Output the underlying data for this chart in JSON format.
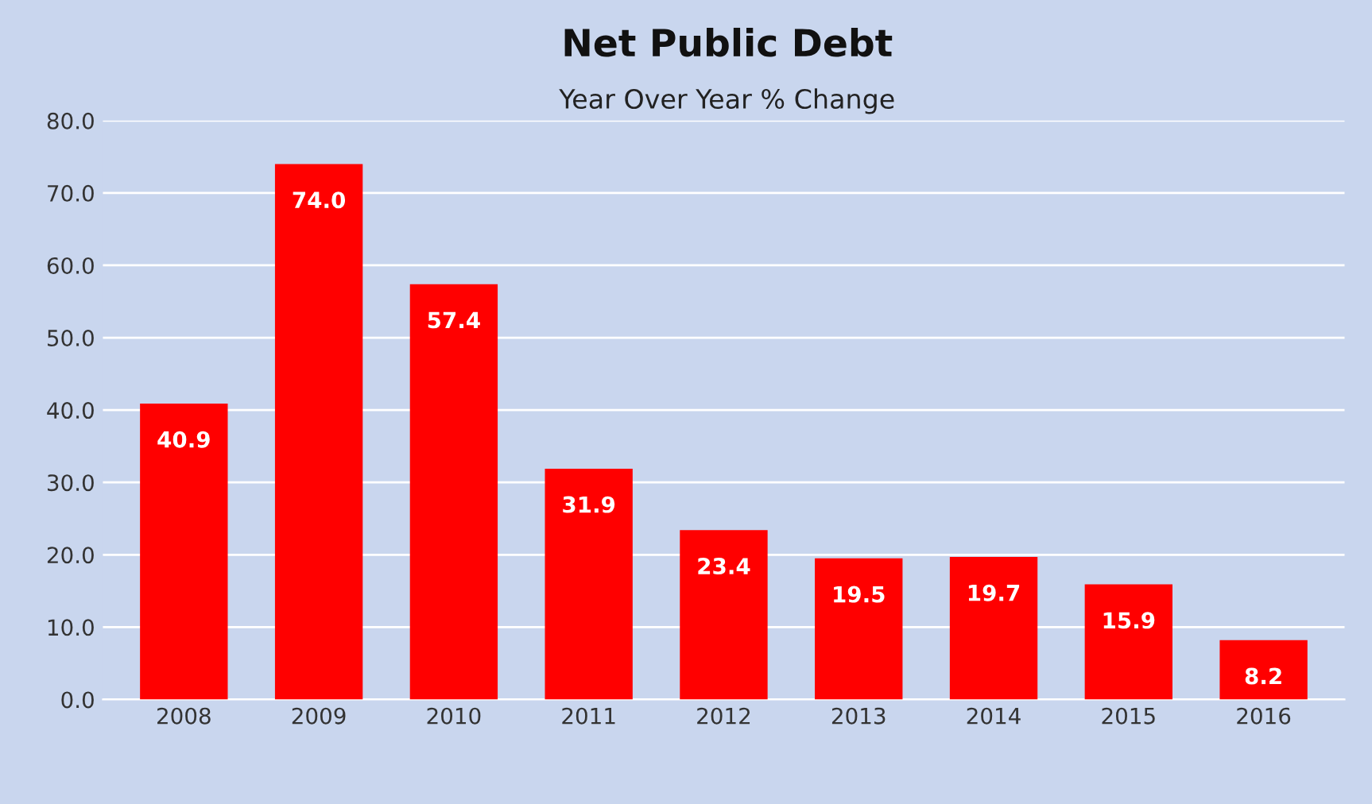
{
  "chart_data": {
    "type": "bar",
    "title": "Net Public Debt",
    "subtitle": "Year Over Year % Change",
    "categories": [
      "2008",
      "2009",
      "2010",
      "2011",
      "2012",
      "2013",
      "2014",
      "2015",
      "2016"
    ],
    "values": [
      40.9,
      74.0,
      57.4,
      31.9,
      23.4,
      19.5,
      19.7,
      15.9,
      8.2
    ],
    "value_labels": [
      "40.9",
      "74.0",
      "57.4",
      "31.9",
      "23.4",
      "19.5",
      "19.7",
      "15.9",
      "8.2"
    ],
    "color": "#ff0000",
    "ylim": [
      0,
      80
    ],
    "yticks": [
      {
        "value": 0,
        "label": "0.0"
      },
      {
        "value": 10,
        "label": "10.0"
      },
      {
        "value": 20,
        "label": "20.0"
      },
      {
        "value": 30,
        "label": "30.0"
      },
      {
        "value": 40,
        "label": "40.0"
      },
      {
        "value": 50,
        "label": "50.0"
      },
      {
        "value": 60,
        "label": "60.0"
      },
      {
        "value": 70,
        "label": "70.0"
      },
      {
        "value": 80,
        "label": "80.0"
      }
    ],
    "grid": "y",
    "legend": false
  }
}
